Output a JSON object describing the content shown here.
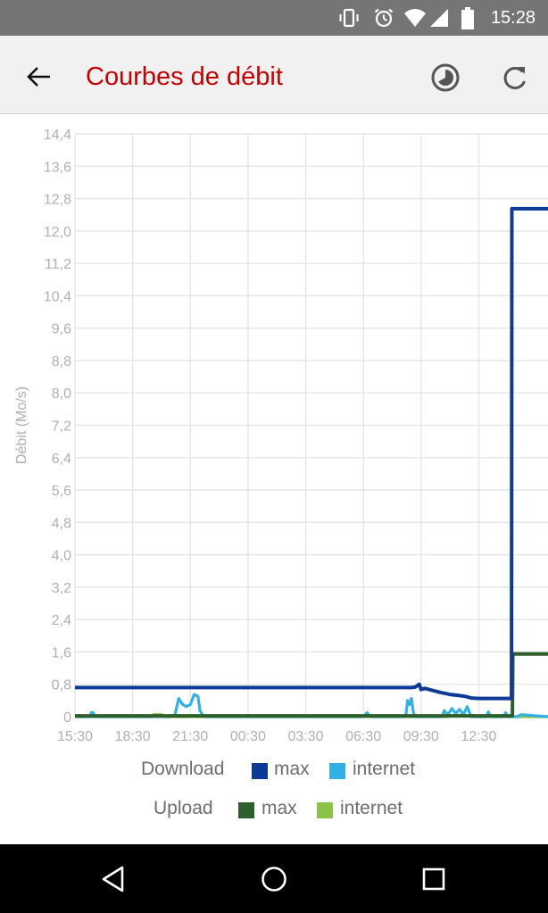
{
  "status_bar": {
    "time": "15:28",
    "icons": [
      "vibrate-icon",
      "alarm-icon",
      "wifi-icon",
      "signal-icon",
      "battery-icon"
    ]
  },
  "app_bar": {
    "title": "Courbes de débit",
    "back_icon": "arrow-back-icon",
    "history_icon": "history-icon",
    "refresh_icon": "refresh-icon"
  },
  "colors": {
    "title": "#c40000",
    "download_max": "#0d3a96",
    "download_internet": "#33b1e6",
    "upload_max": "#2e5e2a",
    "upload_internet": "#8bc34a"
  },
  "chart_data": {
    "type": "line",
    "ylabel": "Débit (Mo/s)",
    "xlabel": "",
    "ylim": [
      0,
      14.4
    ],
    "y_ticks": [
      "0",
      "0,8",
      "1,6",
      "2,4",
      "3,2",
      "4,0",
      "4,8",
      "5,6",
      "6,4",
      "7,2",
      "8,0",
      "8,8",
      "9,6",
      "10,4",
      "11,2",
      "12,0",
      "12,8",
      "13,6",
      "14,4"
    ],
    "x_ticks": [
      "15:30",
      "18:30",
      "21:30",
      "00:30",
      "03:30",
      "06:30",
      "09:30",
      "12:30"
    ],
    "xlim_hours": [
      0,
      24.6
    ],
    "grid": true,
    "series": [
      {
        "name": "max",
        "group": "Download",
        "color": "#0d3a96",
        "x": [
          0,
          17.5,
          17.7,
          17.9,
          18.0,
          18.2,
          18.5,
          19.0,
          19.5,
          20.0,
          20.3,
          20.6,
          21.0,
          22.7,
          22.72,
          22.9,
          23.4,
          23.6,
          24.6
        ],
        "y": [
          0.72,
          0.72,
          0.73,
          0.8,
          0.67,
          0.7,
          0.66,
          0.6,
          0.55,
          0.52,
          0.5,
          0.46,
          0.45,
          0.45,
          12.55,
          12.55,
          12.55,
          12.55,
          12.55
        ]
      },
      {
        "name": "internet",
        "group": "Download",
        "color": "#33b1e6",
        "x": [
          0,
          0.8,
          0.85,
          0.95,
          1.0,
          5.0,
          5.2,
          5.4,
          5.6,
          5.8,
          6.0,
          6.2,
          6.4,
          6.5,
          6.7,
          15.0,
          15.2,
          15.3,
          15.4,
          17.2,
          17.3,
          17.4,
          17.5,
          17.6,
          17.7,
          19.1,
          19.2,
          19.4,
          19.6,
          19.8,
          20.0,
          20.2,
          20.4,
          20.6,
          21.4,
          21.5,
          21.6,
          22.0,
          22.3,
          22.4,
          22.5,
          22.8,
          23.0,
          23.2,
          24.6
        ],
        "y": [
          0,
          0,
          0.1,
          0.1,
          0,
          0,
          0.05,
          0.45,
          0.3,
          0.25,
          0.3,
          0.55,
          0.5,
          0.15,
          0,
          0,
          0.1,
          0.03,
          0,
          0,
          0.4,
          0.3,
          0.45,
          0.1,
          0,
          0,
          0.15,
          0.05,
          0.2,
          0.08,
          0.18,
          0.05,
          0.25,
          0,
          0,
          0.12,
          0,
          0,
          0,
          0.1,
          0,
          0,
          0,
          0.05,
          0
        ]
      },
      {
        "name": "max",
        "group": "Upload",
        "color": "#2e5e2a",
        "x": [
          0,
          22.75,
          22.77,
          24.6
        ],
        "y": [
          0.02,
          0.02,
          1.55,
          1.55
        ]
      },
      {
        "name": "internet",
        "group": "Upload",
        "color": "#8bc34a",
        "x": [
          0,
          4.0,
          4.1,
          4.5,
          4.6,
          19.4,
          19.5,
          20.8,
          20.9,
          24.6
        ],
        "y": [
          0,
          0,
          0.05,
          0.05,
          0,
          0,
          0.03,
          0.03,
          0,
          0
        ]
      }
    ]
  },
  "legend": {
    "download_label": "Download",
    "upload_label": "Upload",
    "download_items": [
      {
        "label": "max",
        "color": "#0d3a96"
      },
      {
        "label": "internet",
        "color": "#33b1e6"
      }
    ],
    "upload_items": [
      {
        "label": "max",
        "color": "#2e5e2a"
      },
      {
        "label": "internet",
        "color": "#8bc34a"
      }
    ]
  },
  "nav_bar": {
    "back_icon": "nav-back-icon",
    "home_icon": "nav-home-icon",
    "recents_icon": "nav-recents-icon"
  }
}
